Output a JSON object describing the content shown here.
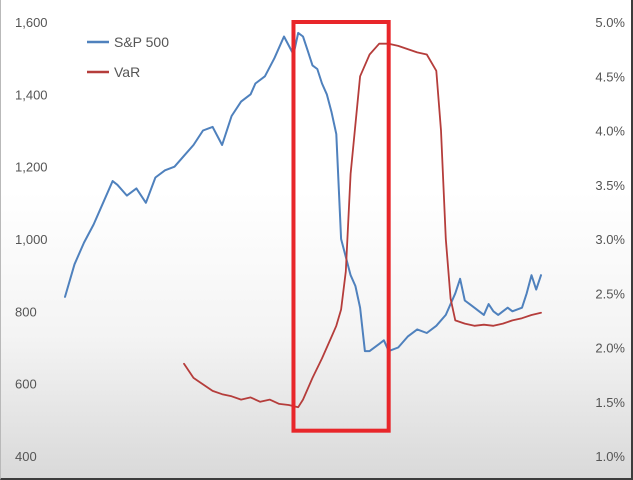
{
  "chart_data": {
    "type": "line",
    "title": "",
    "xlabel": "",
    "ylabel": "",
    "y_left": {
      "ticks": [
        400,
        600,
        800,
        1000,
        1200,
        1400,
        1600
      ],
      "tick_labels": [
        "400",
        "600",
        "800",
        "1,000",
        "1,200",
        "1,400",
        "1,600"
      ],
      "range": [
        400,
        1600
      ]
    },
    "y_right": {
      "ticks": [
        1.0,
        1.5,
        2.0,
        2.5,
        3.0,
        3.5,
        4.0,
        4.5,
        5.0
      ],
      "tick_labels": [
        "1.0%",
        "1.5%",
        "2.0%",
        "2.5%",
        "3.0%",
        "3.5%",
        "4.0%",
        "4.5%",
        "5.0%"
      ],
      "range": [
        1.0,
        5.0
      ]
    },
    "x_range": [
      0,
      100
    ],
    "grid": false,
    "legend_position": "top-left",
    "series": [
      {
        "name": "S&P 500",
        "axis": "left",
        "color": "#4f81bd",
        "x": [
          0,
          2,
          4,
          6,
          8,
          10,
          11,
          13,
          15,
          17,
          19,
          21,
          23,
          25,
          27,
          29,
          31,
          33,
          35,
          37,
          39,
          40,
          42,
          44,
          46,
          48,
          49,
          50,
          51,
          52,
          53,
          54,
          55,
          56,
          57,
          58,
          60,
          61,
          62,
          63,
          64,
          66,
          67,
          68,
          70,
          72,
          74,
          76,
          78,
          80,
          82,
          83,
          84,
          85,
          86,
          87,
          88,
          89,
          90,
          91,
          92,
          93,
          94,
          96,
          97,
          98,
          99,
          100
        ],
        "y": [
          840,
          930,
          990,
          1040,
          1100,
          1160,
          1150,
          1120,
          1140,
          1100,
          1170,
          1190,
          1200,
          1230,
          1260,
          1300,
          1310,
          1260,
          1340,
          1380,
          1400,
          1430,
          1450,
          1500,
          1560,
          1510,
          1570,
          1560,
          1520,
          1480,
          1470,
          1430,
          1400,
          1350,
          1290,
          1000,
          900,
          870,
          810,
          690,
          690,
          710,
          720,
          690,
          700,
          730,
          750,
          740,
          760,
          790,
          850,
          890,
          830,
          820,
          810,
          800,
          790,
          820,
          800,
          790,
          800,
          810,
          800,
          810,
          850,
          900,
          860,
          900
        ]
      },
      {
        "name": "VaR",
        "axis": "right",
        "color": "#b53d3b",
        "x": [
          25,
          27,
          29,
          31,
          33,
          35,
          37,
          39,
          41,
          43,
          45,
          47,
          49,
          50,
          52,
          54,
          56,
          57,
          58,
          59,
          60,
          62,
          64,
          66,
          68,
          70,
          72,
          74,
          76,
          78,
          79,
          80,
          81,
          82,
          84,
          86,
          88,
          90,
          92,
          94,
          96,
          98,
          100
        ],
        "y": [
          1.85,
          1.72,
          1.66,
          1.6,
          1.57,
          1.55,
          1.52,
          1.54,
          1.5,
          1.52,
          1.48,
          1.47,
          1.45,
          1.52,
          1.72,
          1.9,
          2.1,
          2.2,
          2.35,
          2.7,
          3.6,
          4.5,
          4.7,
          4.8,
          4.8,
          4.78,
          4.75,
          4.72,
          4.7,
          4.55,
          4.0,
          3.0,
          2.45,
          2.25,
          2.22,
          2.2,
          2.21,
          2.2,
          2.22,
          2.25,
          2.27,
          2.3,
          2.32
        ]
      }
    ],
    "annotations": [
      {
        "type": "rectangle",
        "color": "#e8262a",
        "x_range": [
          48,
          68
        ],
        "y_left_range": [
          470,
          1600
        ]
      }
    ]
  }
}
